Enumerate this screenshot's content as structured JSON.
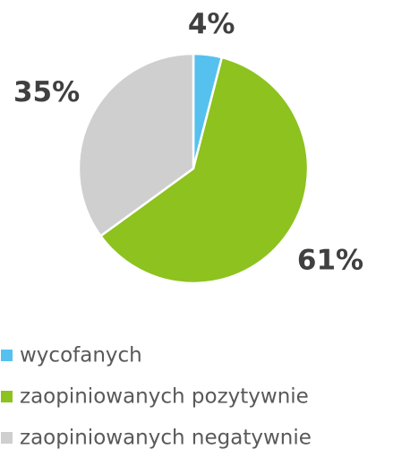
{
  "chart_data": {
    "type": "pie",
    "categories": [
      "wycofanych",
      "zaopiniowanych pozytywnie",
      "zaopiniowanych negatywnie"
    ],
    "values": [
      4,
      61,
      35
    ],
    "value_labels": [
      "4%",
      "61%",
      "35%"
    ],
    "colors": [
      "#56c1ef",
      "#8dc21f",
      "#d0cfd0"
    ],
    "legend": "bottom"
  }
}
